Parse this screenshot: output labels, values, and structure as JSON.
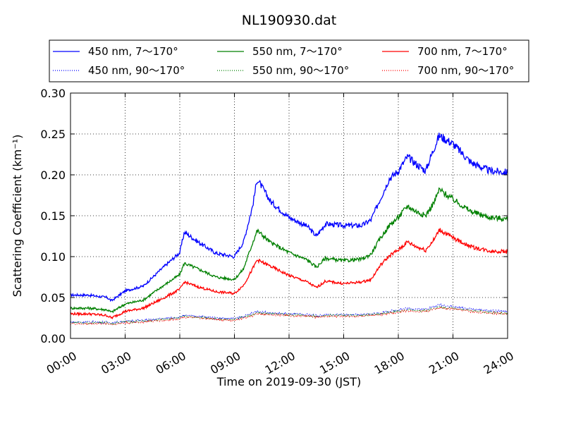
{
  "chart_data": {
    "type": "line",
    "title": "NL190930.dat",
    "xlabel": "Time on 2019-09-30 (JST)",
    "ylabel": "Scattering Coefficient (km⁻¹)",
    "xlim": [
      "00:00",
      "24:00"
    ],
    "ylim": [
      0.0,
      0.3
    ],
    "grid": true,
    "legend_position": "top",
    "x_ticks": [
      "00:00",
      "03:00",
      "06:00",
      "09:00",
      "12:00",
      "15:00",
      "18:00",
      "21:00",
      "24:00"
    ],
    "y_ticks": [
      "0.00",
      "0.05",
      "0.10",
      "0.15",
      "0.20",
      "0.25",
      "0.30"
    ],
    "x": [
      "00:00",
      "01:00",
      "02:00",
      "02:15",
      "03:00",
      "04:00",
      "05:00",
      "06:00",
      "06:15",
      "07:00",
      "08:00",
      "09:00",
      "09:30",
      "10:00",
      "10:15",
      "11:00",
      "12:00",
      "13:00",
      "13:30",
      "14:00",
      "15:00",
      "16:00",
      "16:30",
      "17:00",
      "17:30",
      "18:00",
      "18:30",
      "19:00",
      "19:30",
      "20:00",
      "20:15",
      "21:00",
      "22:00",
      "23:00",
      "24:00"
    ],
    "series": [
      {
        "name": "450 nm, 7～170°",
        "color": "#0000ff",
        "style": "solid",
        "values": [
          0.053,
          0.053,
          0.05,
          0.046,
          0.058,
          0.064,
          0.085,
          0.105,
          0.13,
          0.118,
          0.104,
          0.1,
          0.118,
          0.162,
          0.195,
          0.167,
          0.148,
          0.137,
          0.125,
          0.14,
          0.138,
          0.138,
          0.145,
          0.17,
          0.195,
          0.205,
          0.222,
          0.213,
          0.205,
          0.235,
          0.248,
          0.238,
          0.215,
          0.205,
          0.203
        ]
      },
      {
        "name": "550 nm, 7～170°",
        "color": "#008000",
        "style": "solid",
        "values": [
          0.037,
          0.037,
          0.035,
          0.032,
          0.042,
          0.047,
          0.063,
          0.078,
          0.092,
          0.085,
          0.075,
          0.072,
          0.085,
          0.117,
          0.132,
          0.117,
          0.105,
          0.096,
          0.087,
          0.098,
          0.095,
          0.097,
          0.103,
          0.122,
          0.138,
          0.148,
          0.162,
          0.155,
          0.15,
          0.168,
          0.182,
          0.17,
          0.155,
          0.148,
          0.146
        ]
      },
      {
        "name": "700 nm, 7～170°",
        "color": "#ff0000",
        "style": "solid",
        "values": [
          0.03,
          0.03,
          0.028,
          0.025,
          0.033,
          0.037,
          0.048,
          0.06,
          0.069,
          0.063,
          0.057,
          0.055,
          0.065,
          0.085,
          0.096,
          0.088,
          0.077,
          0.069,
          0.062,
          0.07,
          0.067,
          0.069,
          0.072,
          0.089,
          0.101,
          0.108,
          0.118,
          0.112,
          0.108,
          0.122,
          0.133,
          0.123,
          0.112,
          0.107,
          0.106
        ]
      },
      {
        "name": "450 nm, 90～170°",
        "color": "#0000ff",
        "style": "dotted",
        "values": [
          0.02,
          0.02,
          0.02,
          0.019,
          0.021,
          0.022,
          0.024,
          0.026,
          0.028,
          0.027,
          0.025,
          0.024,
          0.027,
          0.031,
          0.033,
          0.031,
          0.03,
          0.029,
          0.028,
          0.029,
          0.029,
          0.029,
          0.03,
          0.031,
          0.033,
          0.035,
          0.037,
          0.036,
          0.036,
          0.039,
          0.041,
          0.039,
          0.036,
          0.034,
          0.033
        ]
      },
      {
        "name": "550 nm, 90～170°",
        "color": "#008000",
        "style": "dotted",
        "values": [
          0.019,
          0.019,
          0.019,
          0.018,
          0.02,
          0.021,
          0.023,
          0.025,
          0.027,
          0.026,
          0.024,
          0.023,
          0.026,
          0.029,
          0.031,
          0.03,
          0.029,
          0.028,
          0.027,
          0.028,
          0.028,
          0.028,
          0.029,
          0.03,
          0.032,
          0.033,
          0.035,
          0.034,
          0.034,
          0.037,
          0.038,
          0.037,
          0.034,
          0.032,
          0.031
        ]
      },
      {
        "name": "700 nm, 90～170°",
        "color": "#ff0000",
        "style": "dotted",
        "values": [
          0.018,
          0.018,
          0.018,
          0.017,
          0.019,
          0.02,
          0.022,
          0.024,
          0.026,
          0.025,
          0.023,
          0.022,
          0.025,
          0.028,
          0.03,
          0.029,
          0.028,
          0.027,
          0.026,
          0.027,
          0.027,
          0.027,
          0.028,
          0.029,
          0.031,
          0.032,
          0.034,
          0.033,
          0.033,
          0.036,
          0.037,
          0.036,
          0.033,
          0.031,
          0.03
        ]
      }
    ]
  }
}
